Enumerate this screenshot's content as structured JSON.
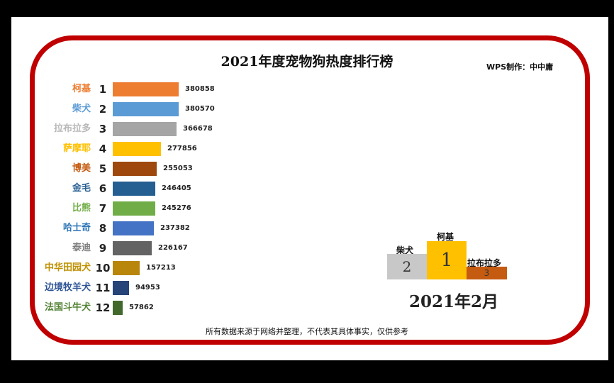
{
  "title": "2021年度宠物狗热度排行榜",
  "credit": "WPS制作：中中庸",
  "footer": "所有数据来源于网络并整理，不代表其具体事实，仅供参考",
  "month": "2021年2月",
  "podium": {
    "first": {
      "rank": "1",
      "name": "柯基",
      "color": "#ffc000"
    },
    "second": {
      "rank": "2",
      "name": "柴犬",
      "color": "#c8c8c8"
    },
    "third": {
      "rank": "3",
      "name": "拉布拉多",
      "color": "#c55a11"
    }
  },
  "rows": [
    {
      "name": "柯基",
      "rank": "1",
      "value": "380858",
      "color": "#ed7d31",
      "label_color": "#ed7d31"
    },
    {
      "name": "柴犬",
      "rank": "2",
      "value": "380570",
      "color": "#5b9bd5",
      "label_color": "#5b9bd5"
    },
    {
      "name": "拉布拉多",
      "rank": "3",
      "value": "366678",
      "color": "#a5a5a5",
      "label_color": "#b8b8b8"
    },
    {
      "name": "萨摩耶",
      "rank": "4",
      "value": "277856",
      "color": "#ffc000",
      "label_color": "#ffc000"
    },
    {
      "name": "博美",
      "rank": "5",
      "value": "255053",
      "color": "#9e480e",
      "label_color": "#c55a11"
    },
    {
      "name": "金毛",
      "rank": "6",
      "value": "246405",
      "color": "#255e91",
      "label_color": "#255e91"
    },
    {
      "name": "比熊",
      "rank": "7",
      "value": "245276",
      "color": "#70ad47",
      "label_color": "#70ad47"
    },
    {
      "name": "哈士奇",
      "rank": "8",
      "value": "237382",
      "color": "#4472c4",
      "label_color": "#2e75b6"
    },
    {
      "name": "泰迪",
      "rank": "9",
      "value": "226167",
      "color": "#636363",
      "label_color": "#7f7f7f"
    },
    {
      "name": "中华田园犬",
      "rank": "10",
      "value": "157213",
      "color": "#b8860b",
      "label_color": "#bf9000"
    },
    {
      "name": "边境牧羊犬",
      "rank": "11",
      "value": "94953",
      "color": "#264478",
      "label_color": "#2f5597"
    },
    {
      "name": "法国斗牛犬",
      "rank": "12",
      "value": "57862",
      "color": "#43682b",
      "label_color": "#548235"
    }
  ],
  "chart_data": {
    "type": "bar",
    "orientation": "horizontal",
    "title": "2021年度宠物狗热度排行榜",
    "subtitle": "2021年2月",
    "categories": [
      "柯基",
      "柴犬",
      "拉布拉多",
      "萨摩耶",
      "博美",
      "金毛",
      "比熊",
      "哈士奇",
      "泰迪",
      "中华田园犬",
      "边境牧羊犬",
      "法国斗牛犬"
    ],
    "values": [
      380858,
      380570,
      366678,
      277856,
      255053,
      246405,
      245276,
      237382,
      226167,
      157213,
      94953,
      57862
    ],
    "ranks": [
      1,
      2,
      3,
      4,
      5,
      6,
      7,
      8,
      9,
      10,
      11,
      12
    ],
    "xlabel": "",
    "ylabel": "",
    "grid": false,
    "legend": "none",
    "annotations": [
      "WPS制作：中中庸",
      "所有数据来源于网络并整理，不代表其具体事实，仅供参考"
    ]
  }
}
